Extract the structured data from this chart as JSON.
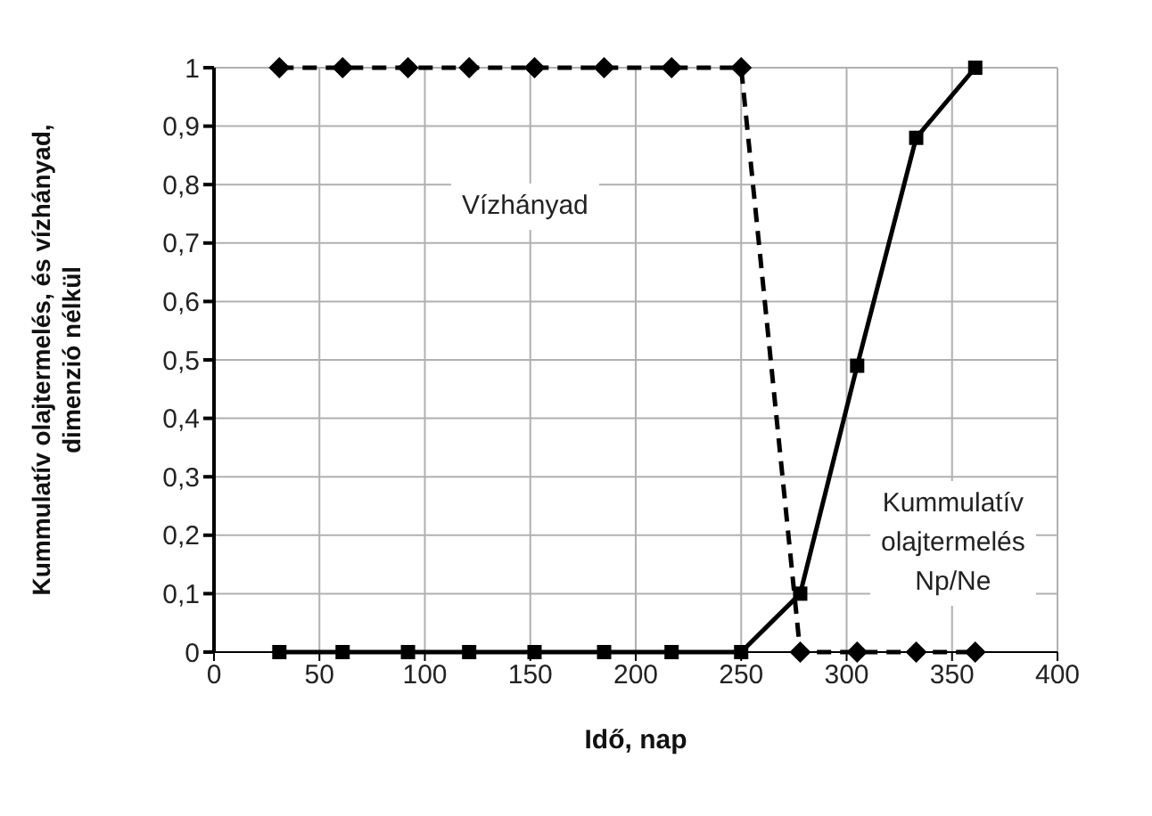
{
  "chart_data": {
    "type": "line",
    "xlabel": "Idő,  nap",
    "ylabel": "Kummulatív olajtermelés, és vízhányad,\ndimenzió nélkül",
    "x": [
      31,
      61,
      92,
      121,
      152,
      185,
      217,
      250,
      278,
      305,
      333,
      361
    ],
    "series": [
      {
        "color": "#000000",
        "marker": "diamond",
        "line_style": "dashed",
        "values": [
          1,
          1,
          1,
          1,
          1,
          1,
          1,
          1,
          0,
          0,
          0,
          0
        ]
      },
      {
        "color": "#000000",
        "marker": "square",
        "line_style": "solid",
        "values": [
          0,
          0,
          0,
          0,
          0,
          0,
          0,
          0,
          0.1,
          0.49,
          0.88,
          1
        ]
      }
    ],
    "xlim": [
      0,
      400
    ],
    "xticks": [
      0,
      50,
      100,
      150,
      200,
      250,
      300,
      350,
      400
    ],
    "ylim": [
      0,
      1
    ],
    "yticks": [
      0,
      {
        "value": 0.1,
        "label": "0,1"
      },
      {
        "value": 0.2,
        "label": "0,2"
      },
      {
        "value": 0.3,
        "label": "0,3"
      },
      {
        "value": 0.4,
        "label": "0,4"
      },
      {
        "value": 0.5,
        "label": "0,5"
      },
      {
        "value": 0.6,
        "label": "0,6"
      },
      {
        "value": 0.7,
        "label": "0,7"
      },
      {
        "value": 0.8,
        "label": "0,8"
      },
      {
        "value": 0.9,
        "label": "0,9"
      },
      1
    ],
    "grid": true,
    "legend": false,
    "annotations": [
      "Vízhányad",
      "Kummulatív\nolajtermelés\nNp/Ne"
    ]
  }
}
